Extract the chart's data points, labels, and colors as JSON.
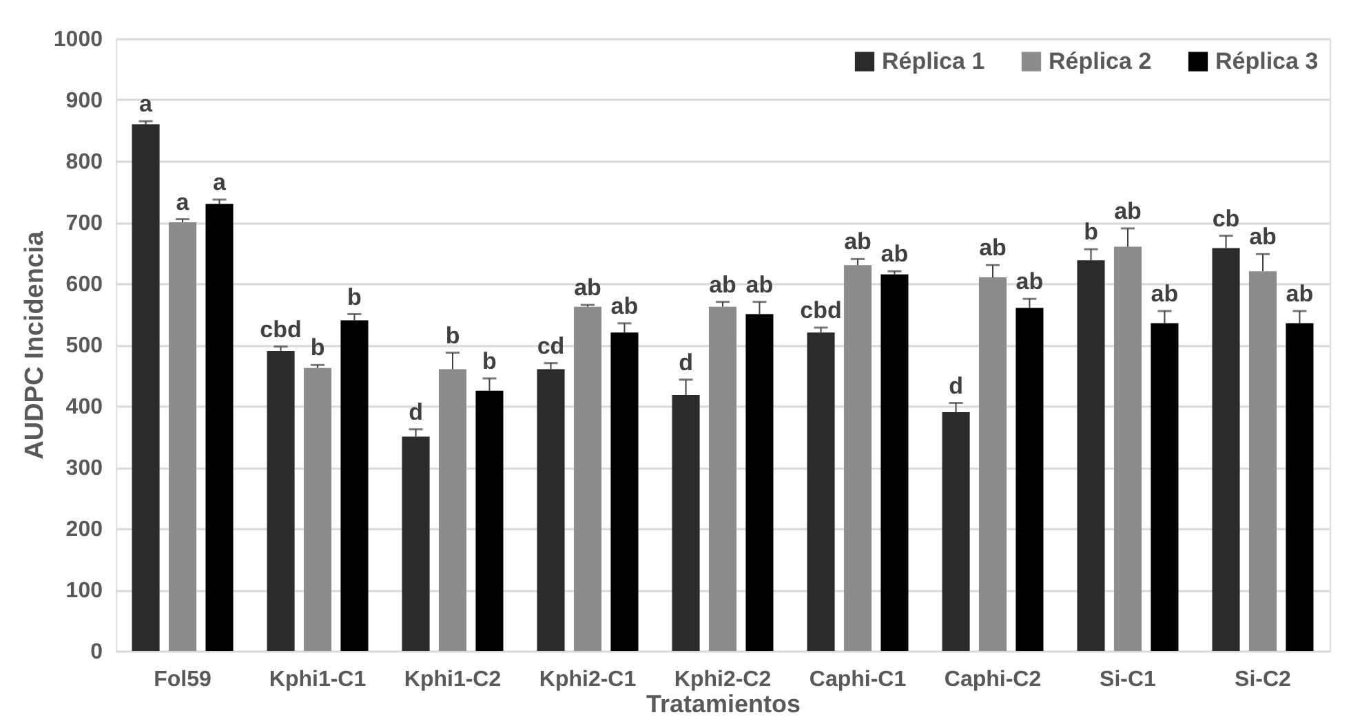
{
  "chart_data": {
    "type": "bar",
    "xlabel": "Tratamientos",
    "ylabel": "AUDPC Incidencia",
    "categories": [
      "Fol59",
      "Kphi1-C1",
      "Kphi1-C2",
      "Kphi2-C1",
      "Kphi2-C2",
      "Caphi-C1",
      "Caphi-C2",
      "Si-C1",
      "Si-C2"
    ],
    "series": [
      {
        "name": "Réplica 1",
        "color": "#2b2b2b",
        "values": [
          860,
          490,
          350,
          460,
          418,
          520,
          390,
          638,
          658
        ],
        "errors": [
          5,
          7,
          12,
          10,
          25,
          8,
          15,
          18,
          20
        ],
        "value_labels": [
          "a",
          "cbd",
          "d",
          "cd",
          "d",
          "cbd",
          "d",
          "b",
          "cb"
        ]
      },
      {
        "name": "Réplica 2",
        "color": "#8c8c8c",
        "values": [
          700,
          462,
          460,
          562,
          562,
          630,
          610,
          660,
          620
        ],
        "errors": [
          5,
          5,
          27,
          3,
          8,
          10,
          20,
          30,
          28
        ],
        "value_labels": [
          "a",
          "b",
          "b",
          "ab",
          "ab",
          "ab",
          "ab",
          "ab",
          "ab"
        ]
      },
      {
        "name": "Réplica 3",
        "color": "#000000",
        "values": [
          730,
          540,
          425,
          520,
          550,
          615,
          560,
          535,
          535
        ],
        "errors": [
          7,
          10,
          20,
          15,
          20,
          5,
          15,
          20,
          20
        ],
        "value_labels": [
          "a",
          "b",
          "b",
          "ab",
          "ab",
          "ab",
          "ab",
          "ab",
          "ab"
        ]
      }
    ],
    "ylim": [
      0,
      1000
    ],
    "yticks": [
      0,
      100,
      200,
      300,
      400,
      500,
      600,
      700,
      800,
      900,
      1000
    ],
    "grid": "y",
    "legend": "top right"
  }
}
